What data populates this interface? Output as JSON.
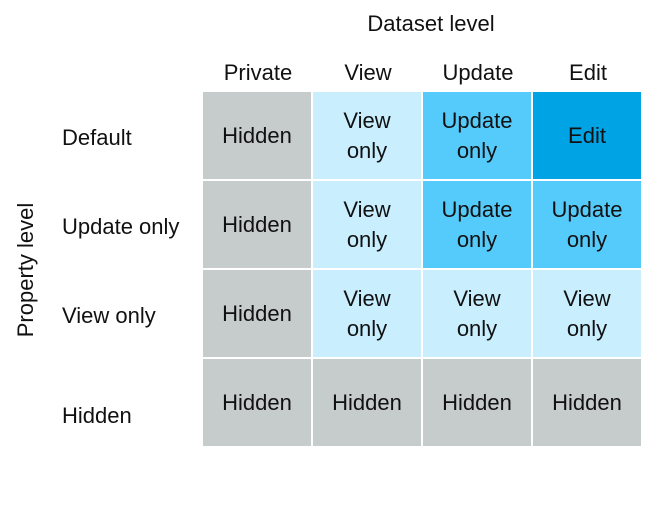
{
  "column_axis_title": "Dataset level",
  "row_axis_title": "Property level",
  "columns": [
    "Private",
    "View",
    "Update",
    "Edit"
  ],
  "rows": [
    {
      "label": "Default",
      "cells": [
        {
          "text": "Hidden",
          "level": "hidden"
        },
        {
          "text": "View\nonly",
          "level": "view"
        },
        {
          "text": "Update\nonly",
          "level": "update"
        },
        {
          "text": "Edit",
          "level": "edit"
        }
      ]
    },
    {
      "label": "Update only",
      "cells": [
        {
          "text": "Hidden",
          "level": "hidden"
        },
        {
          "text": "View\nonly",
          "level": "view"
        },
        {
          "text": "Update\nonly",
          "level": "update"
        },
        {
          "text": "Update\nonly",
          "level": "update"
        }
      ]
    },
    {
      "label": "View only",
      "cells": [
        {
          "text": "Hidden",
          "level": "hidden"
        },
        {
          "text": "View\nonly",
          "level": "view"
        },
        {
          "text": "View\nonly",
          "level": "view"
        },
        {
          "text": "View\nonly",
          "level": "view"
        }
      ]
    },
    {
      "label": "Hidden",
      "cells": [
        {
          "text": "Hidden",
          "level": "hidden"
        },
        {
          "text": "Hidden",
          "level": "hidden"
        },
        {
          "text": "Hidden",
          "level": "hidden"
        },
        {
          "text": "Hidden",
          "level": "hidden"
        }
      ]
    }
  ],
  "level_colors": {
    "hidden": "#c6cbcc",
    "view": "#c9efff",
    "update": "#55cbfb",
    "edit": "#00a3e3"
  }
}
